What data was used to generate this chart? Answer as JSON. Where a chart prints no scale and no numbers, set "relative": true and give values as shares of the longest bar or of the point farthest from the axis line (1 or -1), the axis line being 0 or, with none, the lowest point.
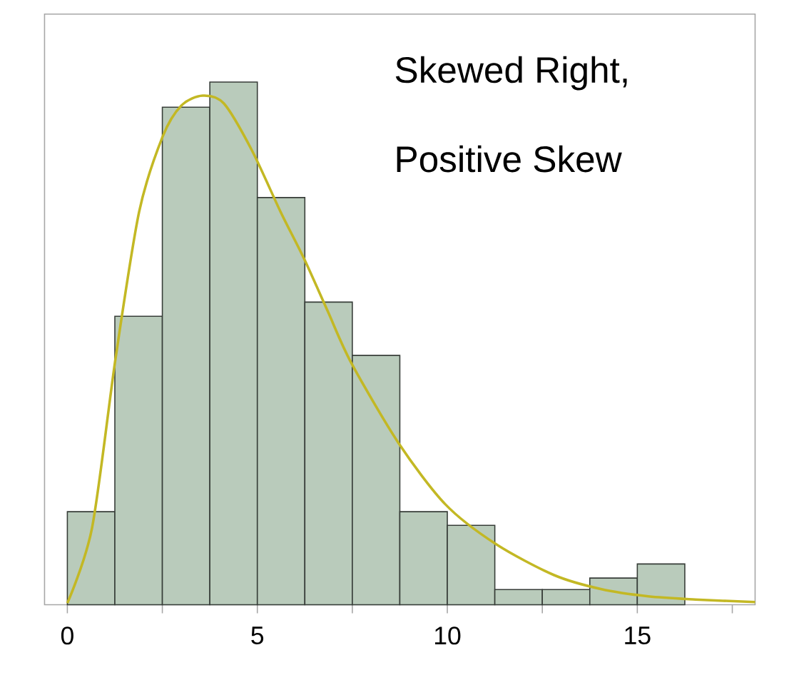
{
  "chart_data": {
    "type": "histogram",
    "relative": true,
    "annotations": [
      "Skewed Right,",
      "Positive Skew"
    ],
    "xlim": [
      -0.6,
      18.1
    ],
    "xticks": [
      0,
      5,
      10,
      15,
      {
        "value": 2.5,
        "label": null
      },
      {
        "value": 7.5,
        "label": null
      },
      {
        "value": 12.5,
        "label": null
      },
      {
        "value": 17.5,
        "label": null
      }
    ],
    "grid": false,
    "series": [
      {
        "color": "#b9cbbb",
        "bins": [
          0,
          1.25,
          2.5,
          3.75,
          5,
          6.25,
          7.5,
          8.75,
          10,
          11.25,
          12.5,
          13.75,
          15,
          16.25
        ],
        "values": [
          0.178,
          0.552,
          0.952,
          1,
          0.779,
          0.579,
          0.477,
          0.178,
          0.152,
          0.029,
          0.029,
          0.051,
          0.078
        ]
      },
      {
        "type": "line",
        "color": "#c3b824",
        "x": [
          0,
          0.65,
          1.27,
          1.89,
          2.51,
          3.0,
          3.56,
          4.12,
          4.86,
          5.61,
          6.23,
          6.85,
          7.47,
          8.71,
          9.95,
          11.28,
          12.8,
          14.04,
          15.29,
          16.53,
          18.1
        ],
        "values": [
          0.003,
          0.147,
          0.472,
          0.752,
          0.896,
          0.955,
          0.974,
          0.959,
          0.869,
          0.752,
          0.662,
          0.562,
          0.463,
          0.31,
          0.192,
          0.116,
          0.057,
          0.03,
          0.016,
          0.01,
          0.005
        ]
      }
    ]
  }
}
